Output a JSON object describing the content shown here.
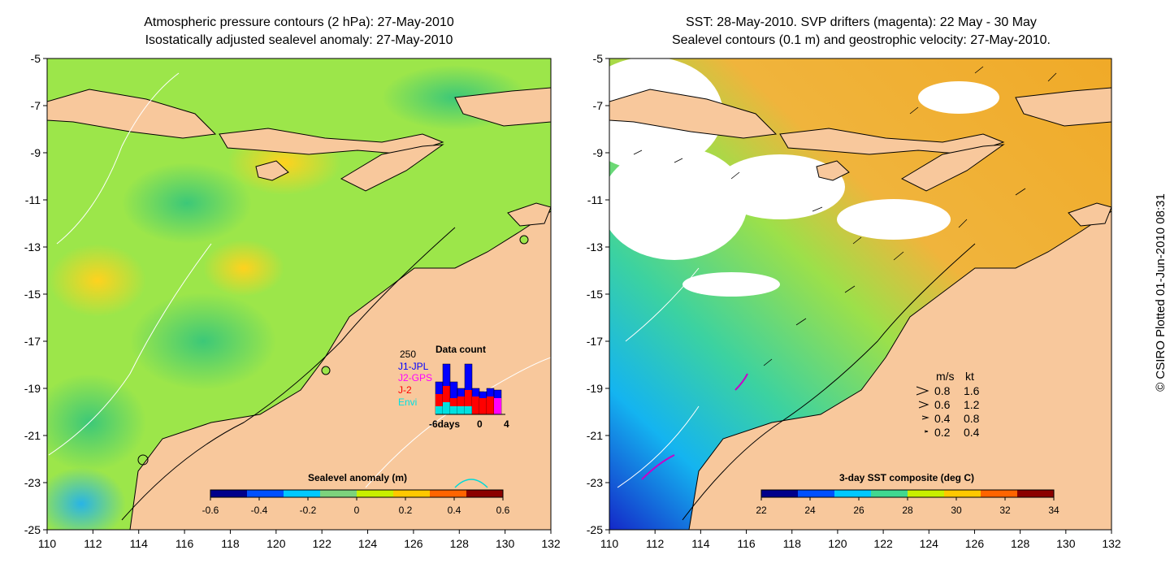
{
  "left_panel": {
    "title_line1": "Atmospheric pressure contours (2 hPa): 27-May-2010",
    "title_line2": "Isostatically adjusted sealevel anomaly: 27-May-2010",
    "colorbar": {
      "label": "Sealevel anomaly (m)",
      "ticks": [
        "-0.6",
        "-0.4",
        "-0.2",
        "0",
        "0.2",
        "0.4",
        "0.6"
      ],
      "colors": [
        "#00008b",
        "#0050ff",
        "#00c8ff",
        "#7cd37c",
        "#c8f000",
        "#ffc800",
        "#ff6400",
        "#8b0000"
      ]
    },
    "data_count": {
      "title": "Data count",
      "ymax_label": "250",
      "legend": [
        {
          "name": "J1-JPL",
          "color": "#0000ff"
        },
        {
          "name": "J2-GPS",
          "color": "#ff00ff"
        },
        {
          "name": "J-2",
          "color": "#ff0000"
        },
        {
          "name": "Envi",
          "color": "#00e0e0"
        }
      ],
      "x_labels": [
        "-6days",
        "0",
        "4"
      ]
    }
  },
  "right_panel": {
    "title_line1": "SST: 28-May-2010. SVP drifters (magenta): 22 May - 30 May",
    "title_line2": "Sealevel contours (0.1 m) and geostrophic velocity: 27-May-2010.",
    "colorbar": {
      "label": "3-day SST composite (deg C)",
      "ticks": [
        "22",
        "24",
        "26",
        "28",
        "30",
        "32",
        "34"
      ],
      "colors": [
        "#00008b",
        "#0050ff",
        "#00c8ff",
        "#40d890",
        "#c8f000",
        "#ffc800",
        "#ff6400",
        "#8b0000"
      ]
    },
    "velocity_legend": {
      "header_ms": "m/s",
      "header_kt": "kt",
      "rows": [
        {
          "ms": "0.8",
          "kt": "1.6"
        },
        {
          "ms": "0.6",
          "kt": "1.2"
        },
        {
          "ms": "0.4",
          "kt": "0.8"
        },
        {
          "ms": "0.2",
          "kt": "0.4"
        }
      ]
    }
  },
  "axes": {
    "x_ticks": [
      "110",
      "112",
      "114",
      "116",
      "118",
      "120",
      "122",
      "124",
      "126",
      "128",
      "130",
      "132"
    ],
    "y_ticks": [
      "-5",
      "-7",
      "-9",
      "-11",
      "-13",
      "-15",
      "-17",
      "-19",
      "-21",
      "-23",
      "-25"
    ]
  },
  "colors": {
    "land": "#f8c89c",
    "coast": "#000000"
  },
  "credit": "© CSIRO Plotted 01-Jun-2010 08:31"
}
